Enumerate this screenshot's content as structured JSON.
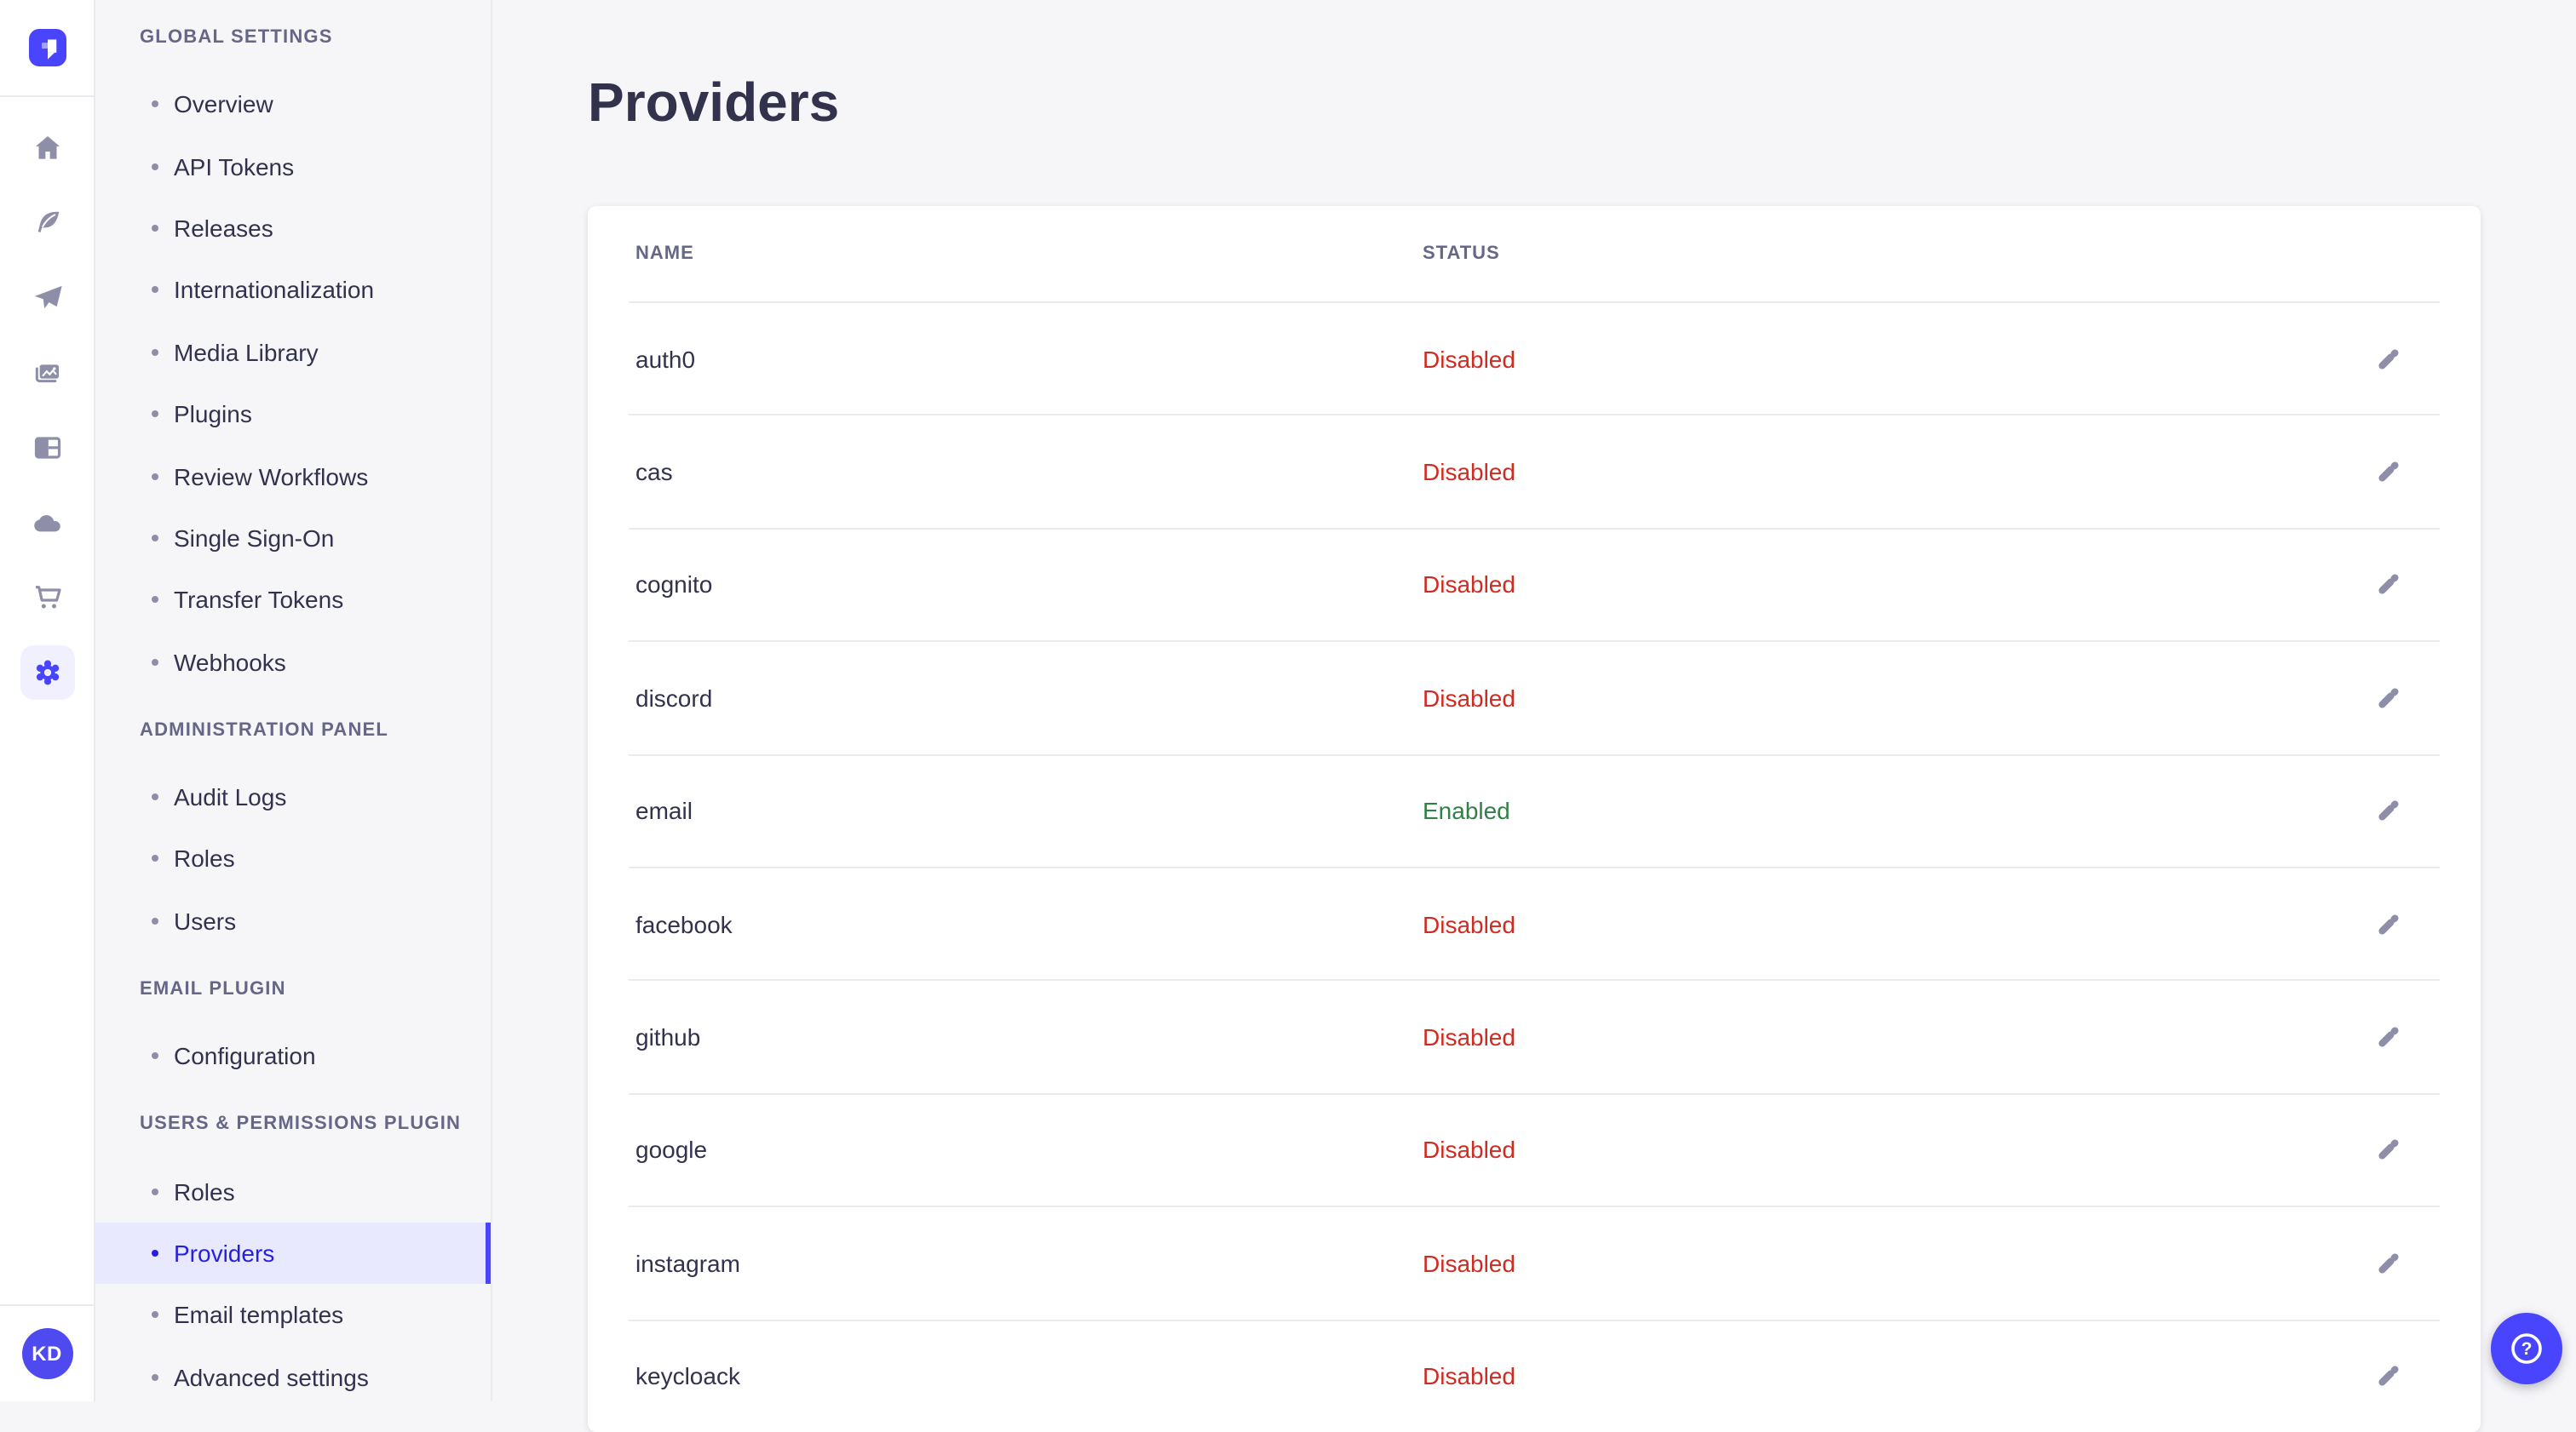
{
  "brand": {
    "name": "strapi",
    "logo_color": "#4945FF"
  },
  "icon_rail": {
    "icons": [
      {
        "name": "home"
      },
      {
        "name": "feather"
      },
      {
        "name": "paper-plane"
      },
      {
        "name": "images"
      },
      {
        "name": "layout"
      },
      {
        "name": "cloud"
      },
      {
        "name": "cart"
      },
      {
        "name": "gear",
        "active": true
      }
    ],
    "avatar_initials": "KD"
  },
  "sidebar": {
    "sections": [
      {
        "label": "GLOBAL SETTINGS",
        "items": [
          {
            "label": "Overview"
          },
          {
            "label": "API Tokens"
          },
          {
            "label": "Releases"
          },
          {
            "label": "Internationalization"
          },
          {
            "label": "Media Library"
          },
          {
            "label": "Plugins"
          },
          {
            "label": "Review Workflows"
          },
          {
            "label": "Single Sign-On"
          },
          {
            "label": "Transfer Tokens"
          },
          {
            "label": "Webhooks"
          }
        ]
      },
      {
        "label": "ADMINISTRATION PANEL",
        "items": [
          {
            "label": "Audit Logs"
          },
          {
            "label": "Roles"
          },
          {
            "label": "Users"
          }
        ]
      },
      {
        "label": "EMAIL PLUGIN",
        "items": [
          {
            "label": "Configuration"
          }
        ]
      },
      {
        "label": "USERS & PERMISSIONS PLUGIN",
        "items": [
          {
            "label": "Roles"
          },
          {
            "label": "Providers",
            "active": true
          },
          {
            "label": "Email templates"
          },
          {
            "label": "Advanced settings"
          }
        ]
      }
    ]
  },
  "main": {
    "title": "Providers",
    "table": {
      "columns": [
        "NAME",
        "STATUS"
      ],
      "rows": [
        {
          "name": "auth0",
          "status": "Disabled"
        },
        {
          "name": "cas",
          "status": "Disabled"
        },
        {
          "name": "cognito",
          "status": "Disabled"
        },
        {
          "name": "discord",
          "status": "Disabled"
        },
        {
          "name": "email",
          "status": "Enabled"
        },
        {
          "name": "facebook",
          "status": "Disabled"
        },
        {
          "name": "github",
          "status": "Disabled"
        },
        {
          "name": "google",
          "status": "Disabled"
        },
        {
          "name": "instagram",
          "status": "Disabled"
        },
        {
          "name": "keycloack",
          "status": "Disabled"
        }
      ]
    }
  },
  "colors": {
    "primary": "#4945FF",
    "selected_text": "#271FE0",
    "selected_bg": "#E8E8FF",
    "status_disabled": "#D02B20",
    "status_enabled": "#328048",
    "text_dark": "#32324D",
    "text_muted": "#666687",
    "icon_grey": "#8E8EA9",
    "border": "#EAEAEF",
    "background": "#F6F6F9"
  }
}
